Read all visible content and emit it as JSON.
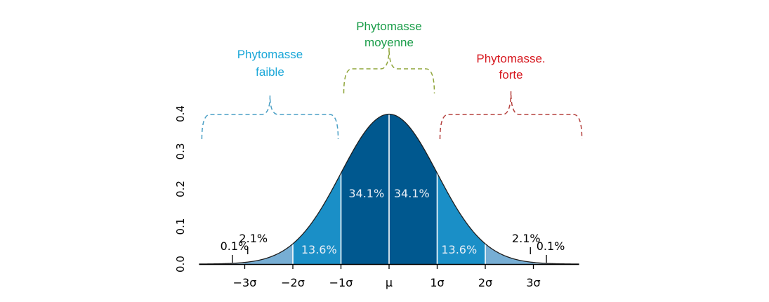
{
  "chart_data": {
    "type": "area",
    "title": "",
    "xlabel": "",
    "ylabel": "",
    "distribution": {
      "mean": 0,
      "sd": 1
    },
    "xlim": [
      -3.95,
      3.95
    ],
    "ylim": [
      0,
      0.4
    ],
    "x_ticks": [
      -3,
      -2,
      -1,
      0,
      1,
      2,
      3
    ],
    "x_tick_labels": [
      "−3σ",
      "−2σ",
      "−1σ",
      "μ",
      "1σ",
      "2σ",
      "3σ"
    ],
    "y_ticks": [
      0.0,
      0.1,
      0.2,
      0.3,
      0.4
    ],
    "y_tick_labels": [
      "0.0",
      "0.1",
      "0.2",
      "0.3",
      "0.4"
    ],
    "bands": [
      {
        "from": -3,
        "to": -2,
        "pct": "2.1%",
        "color": "#77aed4"
      },
      {
        "from": -2,
        "to": -1,
        "pct": "13.6%",
        "color": "#1a8fc7"
      },
      {
        "from": -1,
        "to": 0,
        "pct": "34.1%",
        "color": "#00588f"
      },
      {
        "from": 0,
        "to": 1,
        "pct": "34.1%",
        "color": "#00588f"
      },
      {
        "from": 1,
        "to": 2,
        "pct": "13.6%",
        "color": "#1a8fc7"
      },
      {
        "from": 2,
        "to": 3,
        "pct": "2.1%",
        "color": "#77aed4"
      }
    ],
    "tail_labels": [
      {
        "x": -3.3,
        "pct": "0.1%"
      },
      {
        "x": 3.3,
        "pct": "0.1%"
      }
    ],
    "groups": [
      {
        "label_lines": [
          "Phytomasse",
          "faible"
        ],
        "from": -3.95,
        "to": -1,
        "color": "#1aa7d8",
        "brace_color": "#4a9fc5"
      },
      {
        "label_lines": [
          "Phytomasse",
          "moyenne"
        ],
        "from": -1,
        "to": 1,
        "color": "#1a9d49",
        "brace_color": "#8fa53a"
      },
      {
        "label_lines": [
          "Phytomasse.",
          "forte"
        ],
        "from": 1,
        "to": 3.95,
        "color": "#d71920",
        "brace_color": "#b5423f"
      }
    ]
  }
}
